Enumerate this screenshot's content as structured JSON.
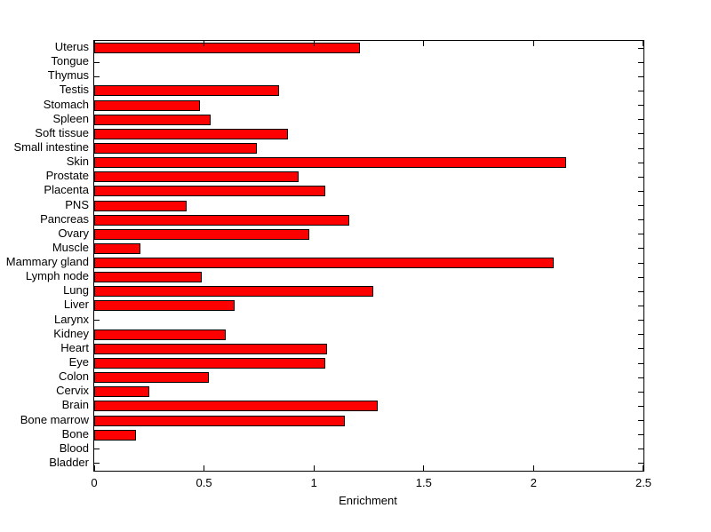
{
  "chart_data": {
    "type": "bar",
    "orientation": "horizontal",
    "title": "",
    "xlabel": "Enrichment",
    "ylabel": "",
    "xlim": [
      0,
      2.5
    ],
    "x_ticks": [
      0,
      0.5,
      1,
      1.5,
      2,
      2.5
    ],
    "x_tick_labels": [
      "0",
      "0.5",
      "1",
      "1.5",
      "2",
      "2.5"
    ],
    "grid": false,
    "box": true,
    "tick_direction": "in",
    "bar_color": "#ff0000",
    "bar_edge_color": "#000000",
    "background_color": "#ffffff",
    "categories_top_to_bottom": [
      "Uterus",
      "Tongue",
      "Thymus",
      "Testis",
      "Stomach",
      "Spleen",
      "Soft tissue",
      "Small intestine",
      "Skin",
      "Prostate",
      "Placenta",
      "PNS",
      "Pancreas",
      "Ovary",
      "Muscle",
      "Mammary gland",
      "Lymph node",
      "Lung",
      "Liver",
      "Larynx",
      "Kidney",
      "Heart",
      "Eye",
      "Colon",
      "Cervix",
      "Brain",
      "Bone marrow",
      "Bone",
      "Blood",
      "Bladder"
    ],
    "values": [
      1.21,
      0,
      0,
      0.84,
      0.48,
      0.53,
      0.88,
      0.74,
      2.15,
      0.93,
      1.05,
      0.42,
      1.16,
      0.98,
      0.21,
      2.09,
      0.49,
      1.27,
      0.64,
      0,
      0.6,
      1.06,
      1.05,
      0.52,
      0.25,
      1.29,
      1.14,
      0.19,
      0,
      0
    ]
  }
}
